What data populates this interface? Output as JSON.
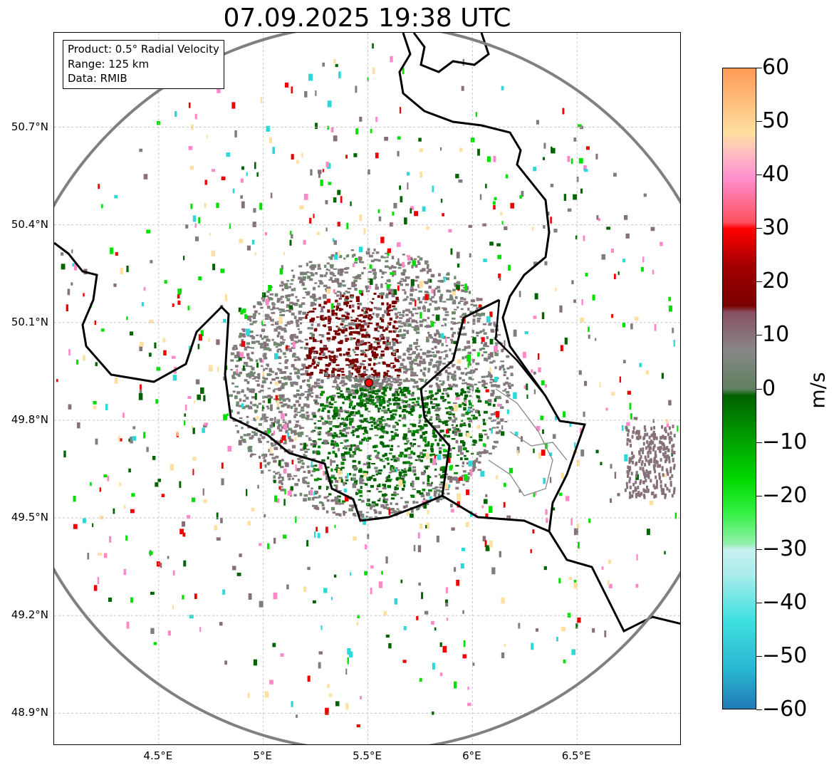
{
  "title": "07.09.2025 19:38 UTC",
  "info_box": {
    "product": "Product: 0.5° Radial Velocity",
    "range": "Range: 125 km",
    "data": "Data: RMIB"
  },
  "map": {
    "lon_range": [
      4.0,
      7.0
    ],
    "lat_range": [
      48.8,
      50.99
    ],
    "lon_ticks": [
      {
        "value": 4.5,
        "label": "4.5°E"
      },
      {
        "value": 5.0,
        "label": "5°E"
      },
      {
        "value": 5.5,
        "label": "5.5°E"
      },
      {
        "value": 6.0,
        "label": "6°E"
      },
      {
        "value": 6.5,
        "label": "6.5°E"
      }
    ],
    "lat_ticks": [
      {
        "value": 50.7,
        "label": "50.7°N"
      },
      {
        "value": 50.4,
        "label": "50.4°N"
      },
      {
        "value": 50.1,
        "label": "50.1°N"
      },
      {
        "value": 49.8,
        "label": "49.8°N"
      },
      {
        "value": 49.5,
        "label": "49.5°N"
      },
      {
        "value": 49.2,
        "label": "49.2°N"
      },
      {
        "value": 48.9,
        "label": "48.9°N"
      }
    ],
    "radar_site": {
      "lon": 5.505,
      "lat": 49.915
    },
    "range_km": 125,
    "gridlines": true
  },
  "colorbar": {
    "label": "m/s",
    "min": -60,
    "max": 60,
    "ticks": [
      {
        "value": 60,
        "label": "60"
      },
      {
        "value": 50,
        "label": "50"
      },
      {
        "value": 40,
        "label": "40"
      },
      {
        "value": 30,
        "label": "30"
      },
      {
        "value": 20,
        "label": "20"
      },
      {
        "value": 10,
        "label": "10"
      },
      {
        "value": 0,
        "label": "0"
      },
      {
        "value": -10,
        "label": "−10"
      },
      {
        "value": -20,
        "label": "−20"
      },
      {
        "value": -30,
        "label": "−30"
      },
      {
        "value": -40,
        "label": "−40"
      },
      {
        "value": -50,
        "label": "−50"
      },
      {
        "value": -60,
        "label": "−60"
      }
    ],
    "colors": {
      "inbound_strong": "#1f77b4",
      "inbound_cyan": "#2dd8d8",
      "inbound_green": "#00e000",
      "inbound_dark_green": "#006400",
      "near_zero": "#7e7e7e",
      "outbound_dark_red": "#7a0000",
      "outbound_red": "#ee0000",
      "outbound_pink": "#ff88c8",
      "outbound_peach": "#ffe0a0",
      "outbound_orange": "#ff9a55"
    }
  }
}
